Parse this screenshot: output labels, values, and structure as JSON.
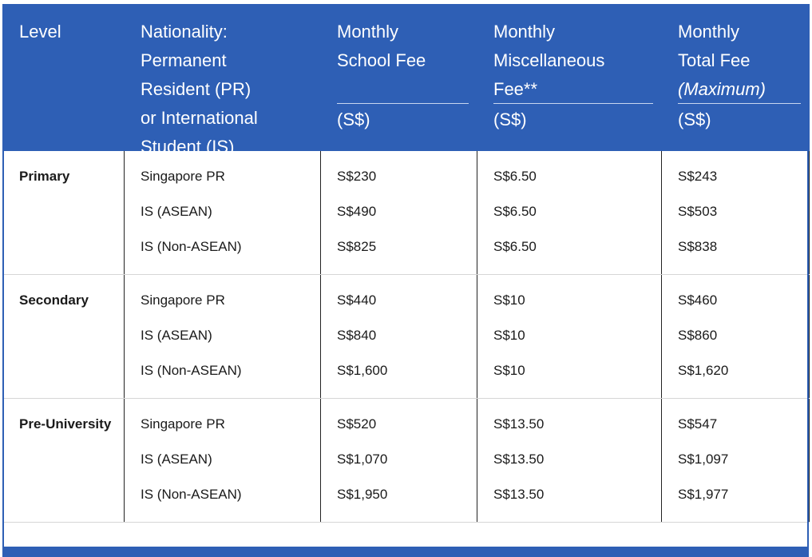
{
  "header": {
    "level": "Level",
    "nationality": [
      "Nationality:",
      "Permanent",
      "Resident (PR)",
      "or International",
      "Student (IS)"
    ],
    "school_fee": [
      "Monthly",
      "School Fee"
    ],
    "misc_fee": [
      "Monthly",
      "Miscellaneous",
      "Fee**"
    ],
    "total_fee": [
      "Monthly",
      "Total Fee"
    ],
    "total_fee_note": "(Maximum)",
    "unit": "(S$)"
  },
  "groups": [
    {
      "level": "Primary",
      "nationality": [
        "Singapore PR",
        "IS (ASEAN)",
        "IS (Non-ASEAN)"
      ],
      "school_fee": [
        "S$230",
        "S$490",
        "S$825"
      ],
      "misc_fee": [
        "S$6.50",
        "S$6.50",
        "S$6.50"
      ],
      "total_fee": [
        "S$243",
        "S$503",
        "S$838"
      ]
    },
    {
      "level": "Secondary",
      "nationality": [
        "Singapore PR",
        "IS (ASEAN)",
        "IS (Non-ASEAN)"
      ],
      "school_fee": [
        "S$440",
        "S$840",
        "S$1,600"
      ],
      "misc_fee": [
        "S$10",
        "S$10",
        "S$10"
      ],
      "total_fee": [
        "S$460",
        "S$860",
        "S$1,620"
      ]
    },
    {
      "level": "Pre-University",
      "nationality": [
        "Singapore PR",
        "IS (ASEAN)",
        "IS (Non-ASEAN)"
      ],
      "school_fee": [
        "S$520",
        "S$1,070",
        "S$1,950"
      ],
      "misc_fee": [
        "S$13.50",
        "S$13.50",
        "S$13.50"
      ],
      "total_fee": [
        "S$547",
        "S$1,097",
        "S$1,977"
      ]
    }
  ],
  "colors": {
    "header_bg": "#2e5fb5",
    "header_text": "#ffffff",
    "body_text": "#1a1a1a"
  }
}
